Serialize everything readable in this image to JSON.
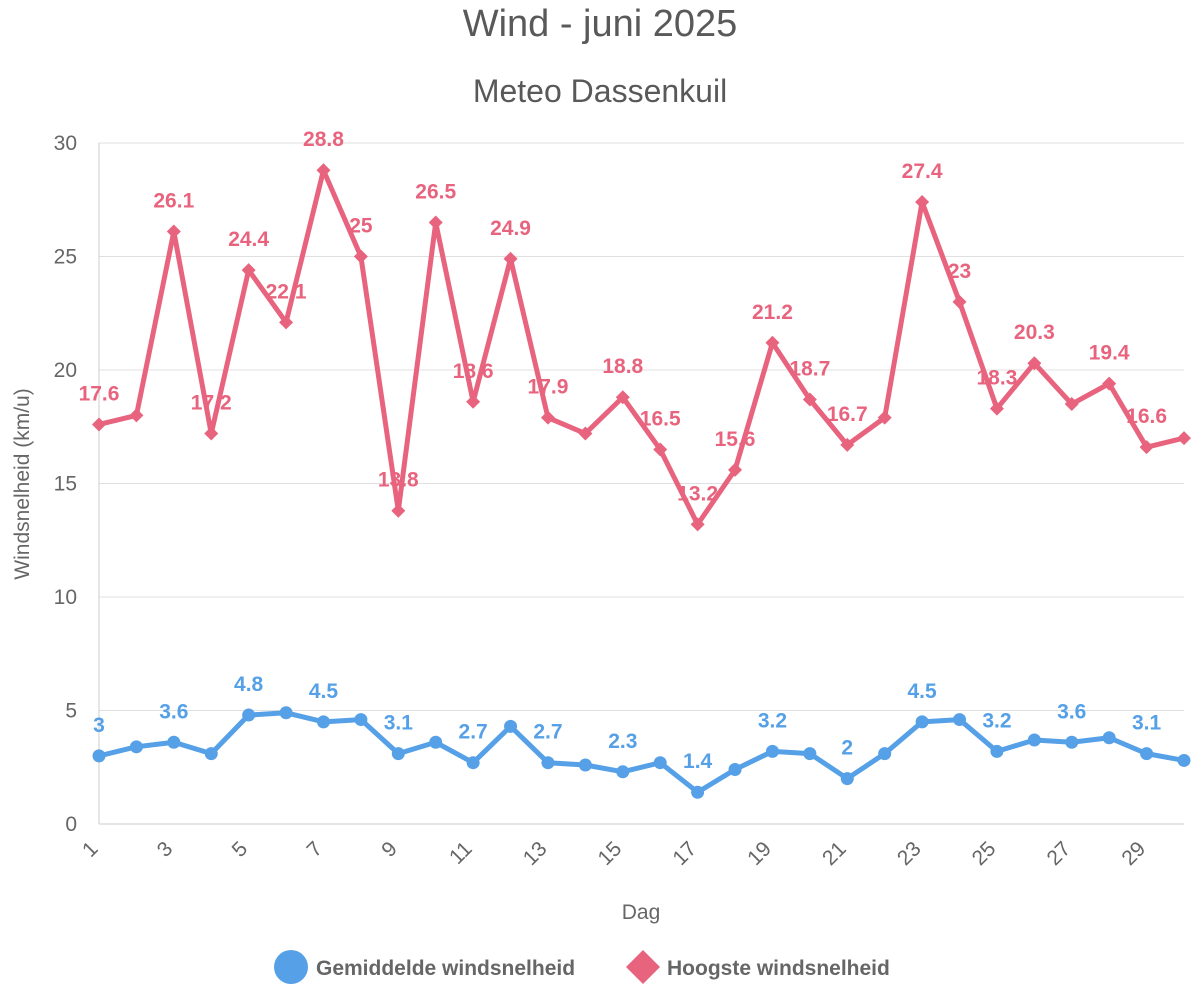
{
  "chart_data": {
    "type": "line",
    "title": "Wind - juni 2025",
    "subtitle": "Meteo Dassenkuil",
    "xlabel": "Dag",
    "ylabel": "Windsnelheid (km/u)",
    "ylim": [
      0,
      30
    ],
    "yticks": [
      0,
      5,
      10,
      15,
      20,
      25,
      30
    ],
    "xticks": [
      1,
      3,
      5,
      7,
      9,
      11,
      13,
      15,
      17,
      19,
      21,
      23,
      25,
      27,
      29
    ],
    "x": [
      1,
      2,
      3,
      4,
      5,
      6,
      7,
      8,
      9,
      10,
      11,
      12,
      13,
      14,
      15,
      16,
      17,
      18,
      19,
      20,
      21,
      22,
      23,
      24,
      25,
      26,
      27,
      28,
      29,
      30
    ],
    "grid": true,
    "legend_position": "bottom",
    "series": [
      {
        "name": "Gemiddelde windsnelheid",
        "color": "#55A0E6",
        "marker": "circle",
        "values": [
          3.0,
          3.4,
          3.6,
          3.1,
          4.8,
          4.9,
          4.5,
          4.6,
          3.1,
          3.6,
          2.7,
          4.3,
          2.7,
          2.6,
          2.3,
          2.7,
          1.4,
          2.4,
          3.2,
          3.1,
          2.0,
          3.1,
          4.5,
          4.6,
          3.2,
          3.7,
          3.6,
          3.8,
          3.1,
          2.8
        ],
        "labeled_points": [
          {
            "day": 1,
            "text": "3"
          },
          {
            "day": 3,
            "text": "3.6"
          },
          {
            "day": 5,
            "text": "4.8"
          },
          {
            "day": 7,
            "text": "4.5"
          },
          {
            "day": 9,
            "text": "3.1"
          },
          {
            "day": 11,
            "text": "2.7"
          },
          {
            "day": 13,
            "text": "2.7"
          },
          {
            "day": 15,
            "text": "2.3"
          },
          {
            "day": 17,
            "text": "1.4"
          },
          {
            "day": 19,
            "text": "3.2"
          },
          {
            "day": 21,
            "text": "2"
          },
          {
            "day": 23,
            "text": "4.5"
          },
          {
            "day": 25,
            "text": "3.2"
          },
          {
            "day": 27,
            "text": "3.6"
          },
          {
            "day": 29,
            "text": "3.1"
          }
        ]
      },
      {
        "name": "Hoogste windsnelheid",
        "color": "#E8647E",
        "marker": "diamond",
        "values": [
          17.6,
          18.0,
          26.1,
          17.2,
          24.4,
          22.1,
          28.8,
          25.0,
          13.8,
          26.5,
          18.6,
          24.9,
          17.9,
          17.2,
          18.8,
          16.5,
          13.2,
          15.6,
          21.2,
          18.7,
          16.7,
          17.9,
          27.4,
          23.0,
          18.3,
          20.3,
          18.5,
          19.4,
          16.6,
          17.0
        ],
        "labeled_points": [
          {
            "day": 1,
            "text": "17.6"
          },
          {
            "day": 3,
            "text": "26.1"
          },
          {
            "day": 4,
            "text": "17.2"
          },
          {
            "day": 5,
            "text": "24.4"
          },
          {
            "day": 6,
            "text": "22.1"
          },
          {
            "day": 7,
            "text": "28.8"
          },
          {
            "day": 8,
            "text": "25"
          },
          {
            "day": 9,
            "text": "13.8"
          },
          {
            "day": 10,
            "text": "26.5"
          },
          {
            "day": 11,
            "text": "18.6"
          },
          {
            "day": 12,
            "text": "24.9"
          },
          {
            "day": 13,
            "text": "17.9"
          },
          {
            "day": 15,
            "text": "18.8"
          },
          {
            "day": 16,
            "text": "16.5"
          },
          {
            "day": 17,
            "text": "13.2"
          },
          {
            "day": 18,
            "text": "15.6"
          },
          {
            "day": 19,
            "text": "21.2"
          },
          {
            "day": 20,
            "text": "18.7"
          },
          {
            "day": 21,
            "text": "16.7"
          },
          {
            "day": 23,
            "text": "27.4"
          },
          {
            "day": 24,
            "text": "23"
          },
          {
            "day": 25,
            "text": "18.3"
          },
          {
            "day": 26,
            "text": "20.3"
          },
          {
            "day": 28,
            "text": "19.4"
          },
          {
            "day": 29,
            "text": "16.6"
          }
        ]
      }
    ]
  }
}
